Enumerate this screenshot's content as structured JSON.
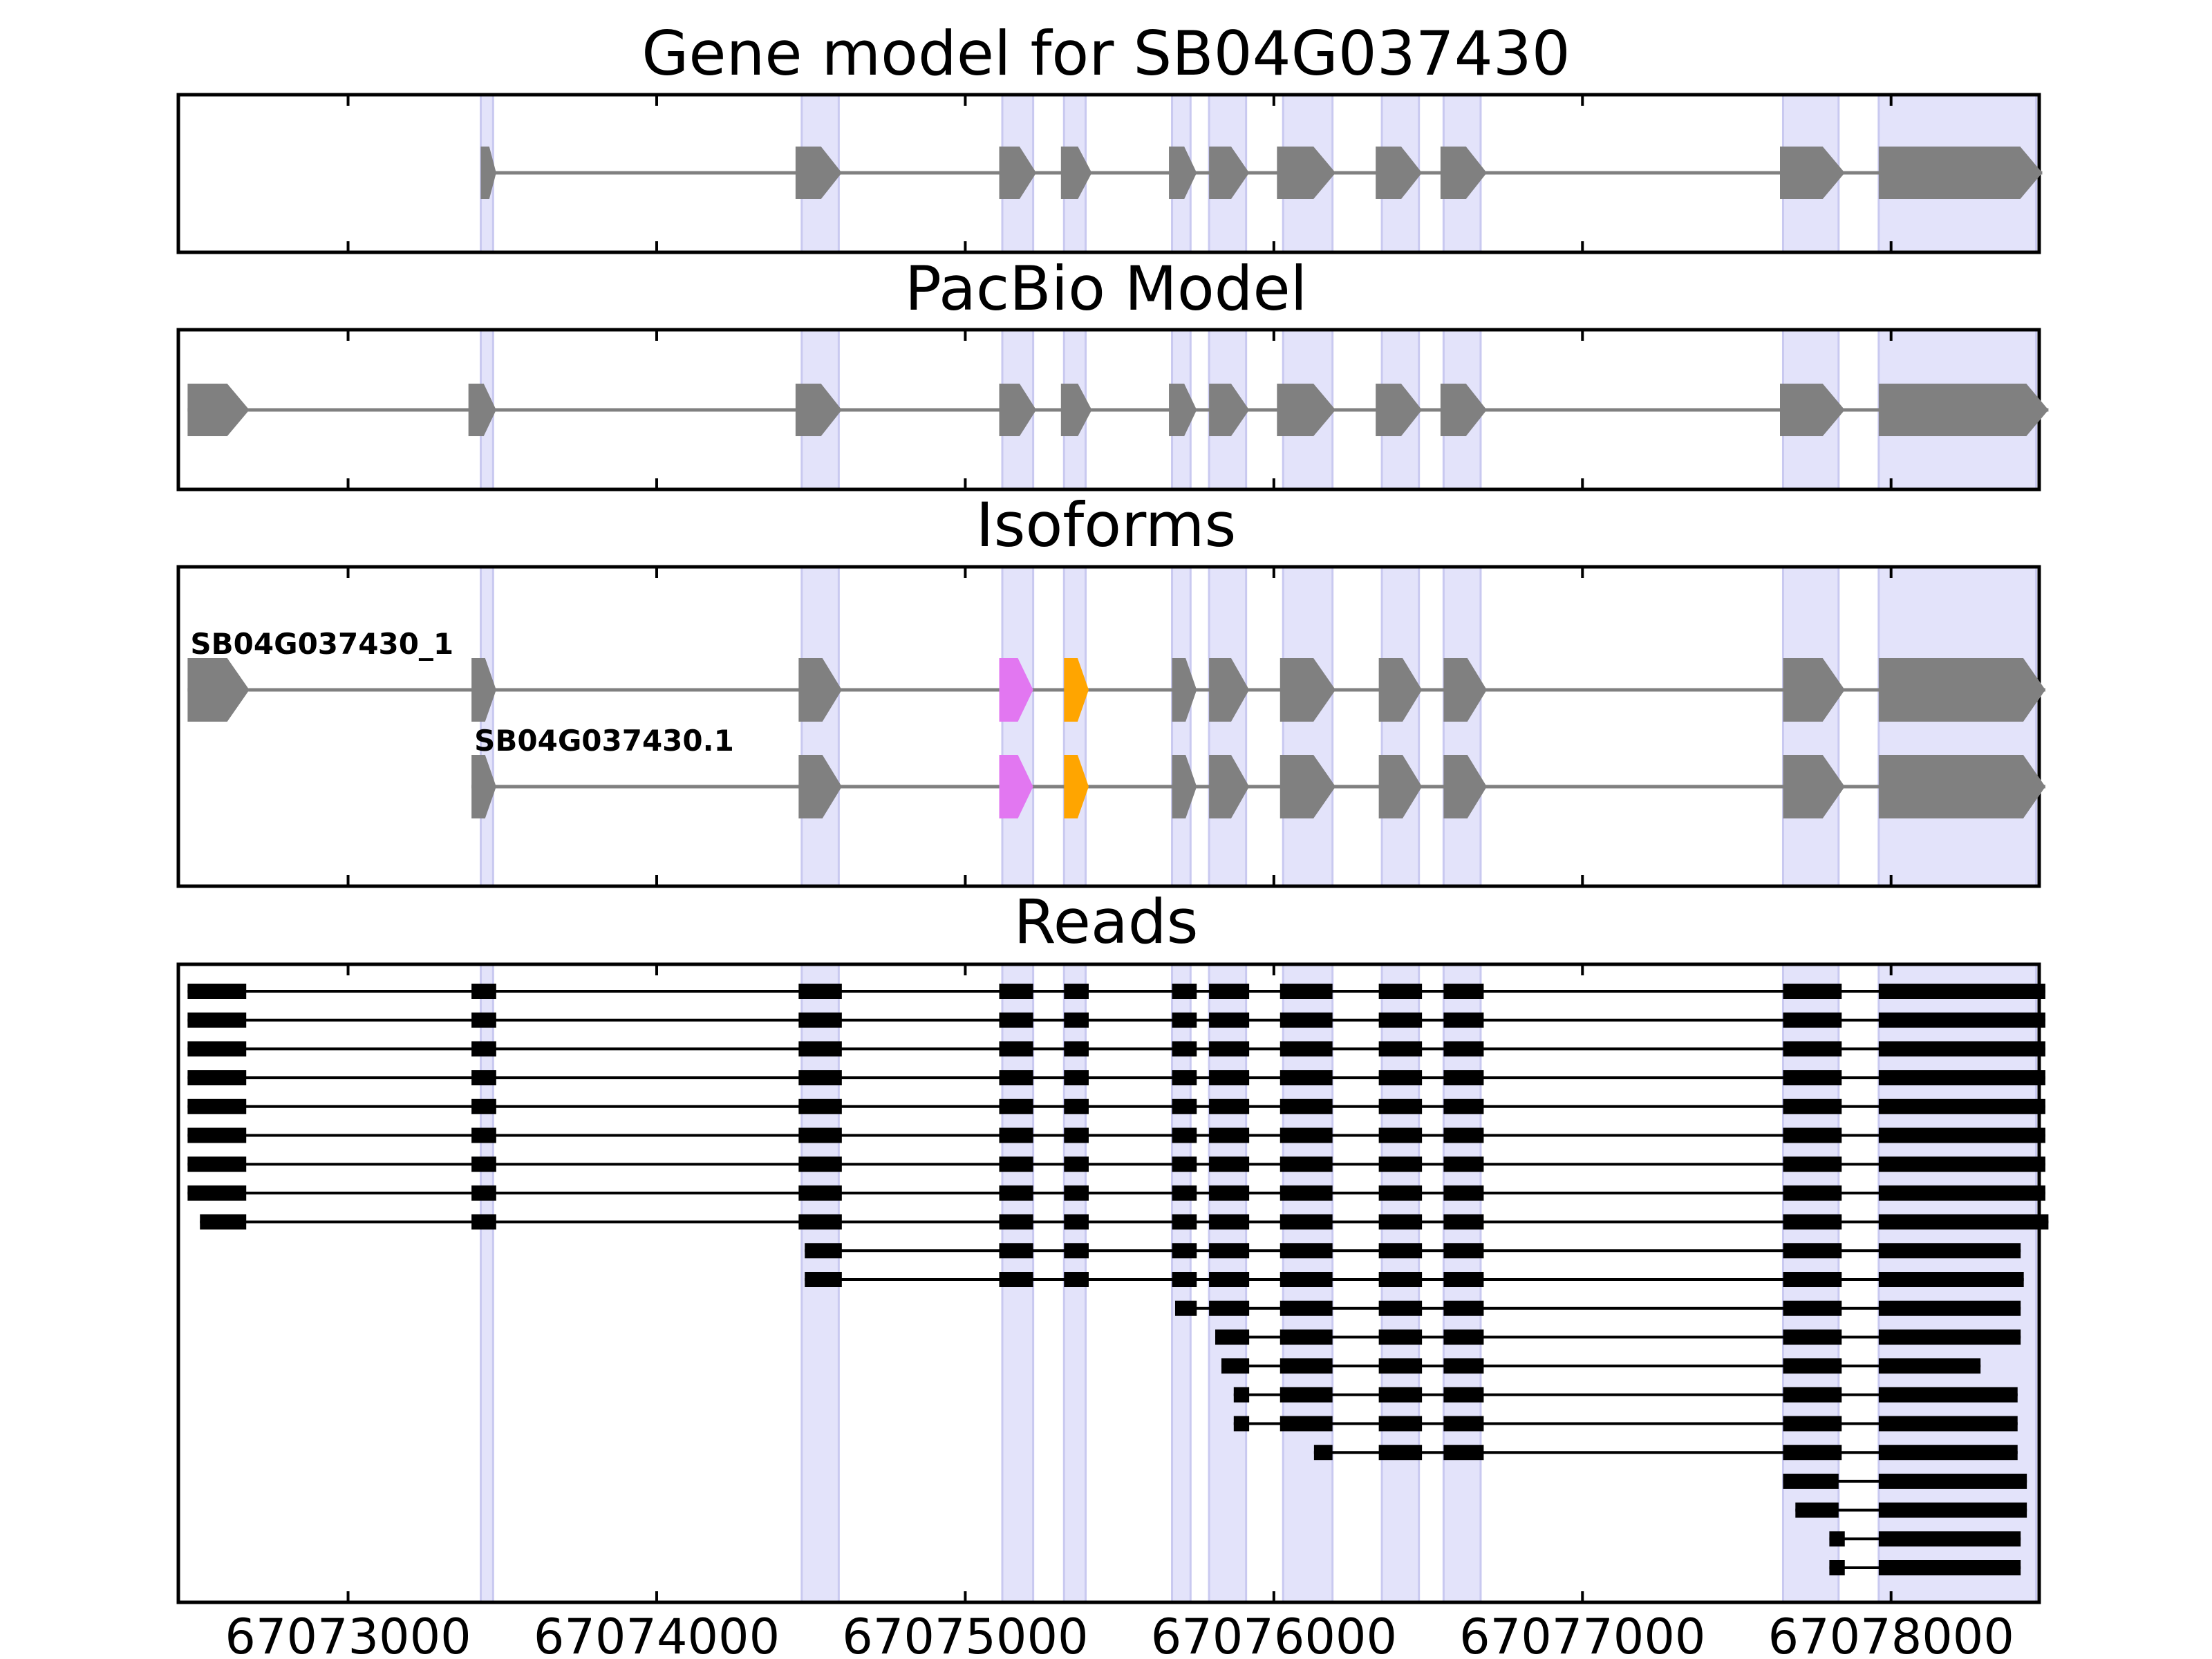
{
  "chart_data": {
    "type": "gene-model-tracks",
    "x_range": [
      67072450,
      67078480
    ],
    "xticks": [
      67073000,
      67074000,
      67075000,
      67076000,
      67077000,
      67078000
    ],
    "xtick_labels": [
      "67073000",
      "67074000",
      "67075000",
      "67076000",
      "67077000",
      "67078000"
    ],
    "colors": {
      "exon": "#808080",
      "intron": "#808080",
      "highlight": "#e3e3fa",
      "highlight_edge": "#c9c9f0",
      "alt_exon_1": "#e277f1",
      "alt_exon_2": "#ffa500",
      "read": "#000000"
    },
    "highlight_regions": [
      [
        67073430,
        67073470
      ],
      [
        67074470,
        67074590
      ],
      [
        67075120,
        67075220
      ],
      [
        67075320,
        67075390
      ],
      [
        67075670,
        67075730
      ],
      [
        67075790,
        67075910
      ],
      [
        67076030,
        67076190
      ],
      [
        67076350,
        67076470
      ],
      [
        67076550,
        67076670
      ],
      [
        67077650,
        67077830
      ],
      [
        67077960,
        67078470
      ]
    ],
    "gene_model": {
      "title": "Gene model for SB04G037430",
      "exons": [
        [
          67073430,
          67073480
        ],
        [
          67074450,
          67074600
        ],
        [
          67075110,
          67075230
        ],
        [
          67075310,
          67075410
        ],
        [
          67075660,
          67075750
        ],
        [
          67075790,
          67075920
        ],
        [
          67076010,
          67076200
        ],
        [
          67076330,
          67076480
        ],
        [
          67076540,
          67076690
        ],
        [
          67077640,
          67077850
        ],
        [
          67077960,
          67078490
        ]
      ]
    },
    "pacbio_model": {
      "title": "PacBio Model",
      "exons": [
        [
          67072480,
          67072680
        ],
        [
          67073390,
          67073480
        ],
        [
          67074450,
          67074600
        ],
        [
          67075110,
          67075230
        ],
        [
          67075310,
          67075410
        ],
        [
          67075660,
          67075750
        ],
        [
          67075790,
          67075920
        ],
        [
          67076010,
          67076200
        ],
        [
          67076330,
          67076480
        ],
        [
          67076540,
          67076690
        ],
        [
          67077640,
          67077850
        ],
        [
          67077960,
          67078510
        ]
      ]
    },
    "isoforms": {
      "title": "Isoforms",
      "items": [
        {
          "name": "SB04G037430_1",
          "exons": [
            [
              67072480,
              67072680
            ],
            [
              67073400,
              67073480
            ],
            [
              67074460,
              67074600
            ],
            [
              67075110,
              67075220
            ],
            [
              67075320,
              67075400
            ],
            [
              67075670,
              67075750
            ],
            [
              67075790,
              67075920
            ],
            [
              67076020,
              67076200
            ],
            [
              67076340,
              67076480
            ],
            [
              67076550,
              67076690
            ],
            [
              67077650,
              67077850
            ],
            [
              67077960,
              67078500
            ]
          ],
          "colored": {
            "3": "alt_exon_1",
            "4": "alt_exon_2"
          }
        },
        {
          "name": "SB04G037430.1",
          "exons": [
            [
              67073400,
              67073480
            ],
            [
              67074460,
              67074600
            ],
            [
              67075110,
              67075220
            ],
            [
              67075320,
              67075400
            ],
            [
              67075670,
              67075750
            ],
            [
              67075790,
              67075920
            ],
            [
              67076020,
              67076200
            ],
            [
              67076340,
              67076480
            ],
            [
              67076550,
              67076690
            ],
            [
              67077650,
              67077850
            ],
            [
              67077960,
              67078500
            ]
          ],
          "colored": {
            "2": "alt_exon_1",
            "3": "alt_exon_2"
          }
        }
      ]
    },
    "reads": {
      "title": "Reads",
      "items": [
        {
          "exons": [
            [
              67072480,
              67072670
            ],
            [
              67073400,
              67073480
            ],
            [
              67074460,
              67074600
            ],
            [
              67075110,
              67075220
            ],
            [
              67075320,
              67075400
            ],
            [
              67075670,
              67075750
            ],
            [
              67075790,
              67075920
            ],
            [
              67076020,
              67076190
            ],
            [
              67076340,
              67076480
            ],
            [
              67076550,
              67076680
            ],
            [
              67077650,
              67077840
            ],
            [
              67077960,
              67078500
            ]
          ]
        },
        {
          "exons": [
            [
              67072480,
              67072670
            ],
            [
              67073400,
              67073480
            ],
            [
              67074460,
              67074600
            ],
            [
              67075110,
              67075220
            ],
            [
              67075320,
              67075400
            ],
            [
              67075670,
              67075750
            ],
            [
              67075790,
              67075920
            ],
            [
              67076020,
              67076190
            ],
            [
              67076340,
              67076480
            ],
            [
              67076550,
              67076680
            ],
            [
              67077650,
              67077840
            ],
            [
              67077960,
              67078500
            ]
          ]
        },
        {
          "exons": [
            [
              67072480,
              67072670
            ],
            [
              67073400,
              67073480
            ],
            [
              67074460,
              67074600
            ],
            [
              67075110,
              67075220
            ],
            [
              67075320,
              67075400
            ],
            [
              67075670,
              67075750
            ],
            [
              67075790,
              67075920
            ],
            [
              67076020,
              67076190
            ],
            [
              67076340,
              67076480
            ],
            [
              67076550,
              67076680
            ],
            [
              67077650,
              67077840
            ],
            [
              67077960,
              67078500
            ]
          ]
        },
        {
          "exons": [
            [
              67072480,
              67072670
            ],
            [
              67073400,
              67073480
            ],
            [
              67074460,
              67074600
            ],
            [
              67075110,
              67075220
            ],
            [
              67075320,
              67075400
            ],
            [
              67075670,
              67075750
            ],
            [
              67075790,
              67075920
            ],
            [
              67076020,
              67076190
            ],
            [
              67076340,
              67076480
            ],
            [
              67076550,
              67076680
            ],
            [
              67077650,
              67077840
            ],
            [
              67077960,
              67078500
            ]
          ]
        },
        {
          "exons": [
            [
              67072480,
              67072670
            ],
            [
              67073400,
              67073480
            ],
            [
              67074460,
              67074600
            ],
            [
              67075110,
              67075220
            ],
            [
              67075320,
              67075400
            ],
            [
              67075670,
              67075750
            ],
            [
              67075790,
              67075920
            ],
            [
              67076020,
              67076190
            ],
            [
              67076340,
              67076480
            ],
            [
              67076550,
              67076680
            ],
            [
              67077650,
              67077840
            ],
            [
              67077960,
              67078500
            ]
          ]
        },
        {
          "exons": [
            [
              67072480,
              67072670
            ],
            [
              67073400,
              67073480
            ],
            [
              67074460,
              67074600
            ],
            [
              67075110,
              67075220
            ],
            [
              67075320,
              67075400
            ],
            [
              67075670,
              67075750
            ],
            [
              67075790,
              67075920
            ],
            [
              67076020,
              67076190
            ],
            [
              67076340,
              67076480
            ],
            [
              67076550,
              67076680
            ],
            [
              67077650,
              67077840
            ],
            [
              67077960,
              67078500
            ]
          ]
        },
        {
          "exons": [
            [
              67072480,
              67072670
            ],
            [
              67073400,
              67073480
            ],
            [
              67074460,
              67074600
            ],
            [
              67075110,
              67075220
            ],
            [
              67075320,
              67075400
            ],
            [
              67075670,
              67075750
            ],
            [
              67075790,
              67075920
            ],
            [
              67076020,
              67076190
            ],
            [
              67076340,
              67076480
            ],
            [
              67076550,
              67076680
            ],
            [
              67077650,
              67077840
            ],
            [
              67077960,
              67078500
            ]
          ]
        },
        {
          "exons": [
            [
              67072480,
              67072670
            ],
            [
              67073400,
              67073480
            ],
            [
              67074460,
              67074600
            ],
            [
              67075110,
              67075220
            ],
            [
              67075320,
              67075400
            ],
            [
              67075670,
              67075750
            ],
            [
              67075790,
              67075920
            ],
            [
              67076020,
              67076190
            ],
            [
              67076340,
              67076480
            ],
            [
              67076550,
              67076680
            ],
            [
              67077650,
              67077840
            ],
            [
              67077960,
              67078500
            ]
          ]
        },
        {
          "exons": [
            [
              67072520,
              67072670
            ],
            [
              67073400,
              67073480
            ],
            [
              67074460,
              67074600
            ],
            [
              67075110,
              67075220
            ],
            [
              67075320,
              67075400
            ],
            [
              67075670,
              67075750
            ],
            [
              67075790,
              67075920
            ],
            [
              67076020,
              67076190
            ],
            [
              67076340,
              67076480
            ],
            [
              67076550,
              67076680
            ],
            [
              67077650,
              67077840
            ],
            [
              67077960,
              67078510
            ]
          ]
        },
        {
          "exons": [
            [
              67074480,
              67074600
            ],
            [
              67075110,
              67075220
            ],
            [
              67075320,
              67075400
            ],
            [
              67075670,
              67075750
            ],
            [
              67075790,
              67075920
            ],
            [
              67076020,
              67076190
            ],
            [
              67076340,
              67076480
            ],
            [
              67076550,
              67076680
            ],
            [
              67077650,
              67077840
            ],
            [
              67077960,
              67078420
            ]
          ]
        },
        {
          "exons": [
            [
              67074480,
              67074600
            ],
            [
              67075110,
              67075220
            ],
            [
              67075320,
              67075400
            ],
            [
              67075670,
              67075750
            ],
            [
              67075790,
              67075920
            ],
            [
              67076020,
              67076190
            ],
            [
              67076340,
              67076480
            ],
            [
              67076550,
              67076680
            ],
            [
              67077650,
              67077840
            ],
            [
              67077960,
              67078430
            ]
          ]
        },
        {
          "exons": [
            [
              67075680,
              67075750
            ],
            [
              67075790,
              67075920
            ],
            [
              67076020,
              67076190
            ],
            [
              67076340,
              67076480
            ],
            [
              67076550,
              67076680
            ],
            [
              67077650,
              67077840
            ],
            [
              67077960,
              67078420
            ]
          ]
        },
        {
          "exons": [
            [
              67075810,
              67075920
            ],
            [
              67076020,
              67076190
            ],
            [
              67076340,
              67076480
            ],
            [
              67076550,
              67076680
            ],
            [
              67077650,
              67077840
            ],
            [
              67077960,
              67078420
            ]
          ]
        },
        {
          "exons": [
            [
              67075830,
              67075920
            ],
            [
              67076020,
              67076190
            ],
            [
              67076340,
              67076480
            ],
            [
              67076550,
              67076680
            ],
            [
              67077650,
              67077840
            ],
            [
              67077960,
              67078290
            ]
          ]
        },
        {
          "exons": [
            [
              67075870,
              67075920
            ],
            [
              67076020,
              67076190
            ],
            [
              67076340,
              67076480
            ],
            [
              67076550,
              67076680
            ],
            [
              67077650,
              67077840
            ],
            [
              67077960,
              67078410
            ]
          ]
        },
        {
          "exons": [
            [
              67075870,
              67075920
            ],
            [
              67076020,
              67076190
            ],
            [
              67076340,
              67076480
            ],
            [
              67076550,
              67076680
            ],
            [
              67077650,
              67077840
            ],
            [
              67077960,
              67078410
            ]
          ]
        },
        {
          "exons": [
            [
              67076130,
              67076190
            ],
            [
              67076340,
              67076480
            ],
            [
              67076550,
              67076680
            ],
            [
              67077650,
              67077840
            ],
            [
              67077960,
              67078410
            ]
          ]
        },
        {
          "exons": [
            [
              67077650,
              67077830
            ],
            [
              67077960,
              67078440
            ]
          ]
        },
        {
          "exons": [
            [
              67077690,
              67077830
            ],
            [
              67077960,
              67078440
            ]
          ]
        },
        {
          "exons": [
            [
              67077800,
              67077850
            ],
            [
              67077960,
              67078420
            ]
          ]
        },
        {
          "exons": [
            [
              67077800,
              67077850
            ],
            [
              67077960,
              67078420
            ]
          ]
        }
      ]
    }
  }
}
